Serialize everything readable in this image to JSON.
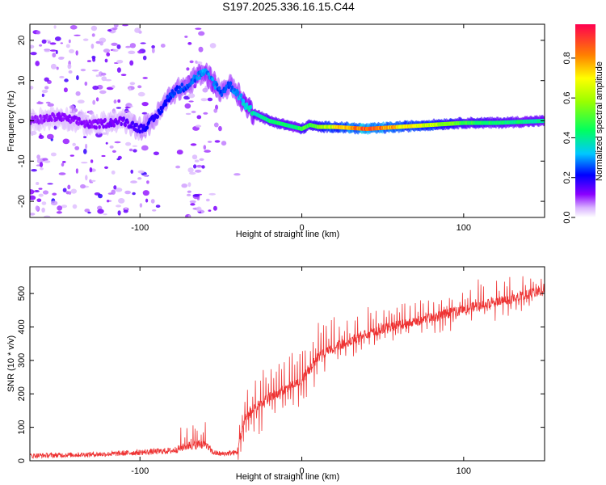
{
  "title": "S197.2025.336.16.15.C44",
  "chart_data": [
    {
      "type": "heatmap",
      "name": "spectrogram",
      "xlabel": "Height of straight line (km)",
      "ylabel": "Frequency (Hz)",
      "xlim": [
        -168,
        150
      ],
      "ylim": [
        -24,
        24
      ],
      "xticks": [
        -100,
        0,
        100
      ],
      "yticks": [
        -20,
        -10,
        0,
        10,
        20
      ],
      "ridge": {
        "x": [
          -168,
          -150,
          -130,
          -110,
          -100,
          -95,
          -90,
          -85,
          -80,
          -75,
          -70,
          -65,
          -60,
          -55,
          -50,
          -45,
          -40,
          -35,
          -30,
          -25,
          -20,
          -15,
          -10,
          -5,
          0,
          5,
          10,
          20,
          40,
          60,
          80,
          100,
          120,
          150
        ],
        "y": [
          0,
          1,
          -1,
          0,
          -2,
          -1,
          1,
          4,
          7,
          8,
          9,
          11,
          12,
          10,
          7,
          9,
          7,
          4,
          2,
          1,
          0,
          -0.5,
          -1,
          -1.5,
          -2,
          -1,
          -1.5,
          -1.5,
          -2,
          -1.5,
          -1,
          -0.5,
          -0.5,
          0
        ],
        "strength": [
          0.1,
          0.12,
          0.12,
          0.14,
          0.18,
          0.2,
          0.2,
          0.22,
          0.25,
          0.25,
          0.25,
          0.28,
          0.3,
          0.3,
          0.25,
          0.25,
          0.3,
          0.35,
          0.4,
          0.4,
          0.45,
          0.45,
          0.45,
          0.4,
          0.5,
          0.5,
          0.55,
          0.7,
          0.9,
          0.75,
          0.65,
          0.5,
          0.45,
          0.4
        ]
      }
    },
    {
      "type": "line",
      "name": "snr",
      "xlabel": "Height of straight line (km)",
      "ylabel": "SNR (10 * v/v)",
      "xlim": [
        -168,
        150
      ],
      "ylim": [
        0,
        580
      ],
      "xticks": [
        -100,
        0,
        100
      ],
      "yticks": [
        0,
        100,
        200,
        300,
        400,
        500
      ],
      "color": "#ee3333",
      "trend": {
        "x": [
          -168,
          -120,
          -100,
          -80,
          -70,
          -60,
          -55,
          -50,
          -40,
          -35,
          -30,
          -20,
          -10,
          0,
          10,
          20,
          30,
          50,
          70,
          90,
          110,
          130,
          150
        ],
        "y": [
          15,
          20,
          25,
          30,
          45,
          50,
          25,
          20,
          25,
          130,
          150,
          190,
          215,
          240,
          310,
          340,
          360,
          395,
          415,
          440,
          465,
          485,
          510
        ]
      },
      "spike_amplitude": 70
    }
  ],
  "colorbar": {
    "label": "Normalized spectral amplitude",
    "ticks": [
      "0.0",
      "0.2",
      "0.4",
      "0.6",
      "0.8"
    ],
    "tick_values": [
      0.0,
      0.2,
      0.4,
      0.6,
      0.8
    ],
    "range": [
      0,
      0.97
    ]
  }
}
